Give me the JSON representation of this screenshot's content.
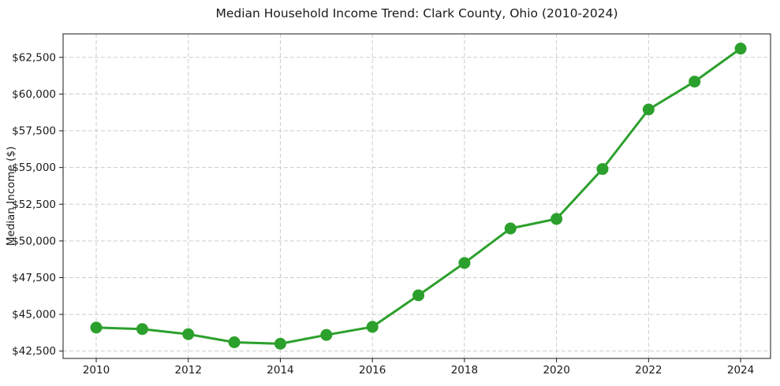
{
  "chart_data": {
    "type": "line",
    "title": "Median Household Income Trend: Clark County, Ohio (2010-2024)",
    "xlabel": "",
    "ylabel": "Median Income ($)",
    "x": [
      2010,
      2011,
      2012,
      2013,
      2014,
      2015,
      2016,
      2017,
      2018,
      2019,
      2020,
      2021,
      2022,
      2023,
      2024
    ],
    "series": [
      {
        "name": "Median Household Income",
        "values": [
          44100,
          44000,
          43650,
          43100,
          43000,
          43600,
          44150,
          46300,
          48500,
          50850,
          51500,
          54900,
          58950,
          60850,
          63100
        ],
        "color": "#2ca02c",
        "marker": "circle",
        "marker_radius": 7.5,
        "line_width": 3
      }
    ],
    "xlim": [
      2009.28,
      2024.65
    ],
    "ylim": [
      42000,
      64100
    ],
    "x_ticks": [
      2010,
      2012,
      2014,
      2016,
      2018,
      2020,
      2022,
      2024
    ],
    "x_tick_labels": [
      "2010",
      "2012",
      "2014",
      "2016",
      "2018",
      "2020",
      "2022",
      "2024"
    ],
    "y_ticks": [
      42500,
      45000,
      47500,
      50000,
      52500,
      55000,
      57500,
      60000,
      62500
    ],
    "y_tick_labels": [
      "$42,500",
      "$45,000",
      "$47,500",
      "$50,000",
      "$52,500",
      "$55,000",
      "$57,500",
      "$60,000",
      "$62,500"
    ],
    "grid": true,
    "grid_style": "dashed",
    "grid_color": "#cccccc",
    "axis_color": "#1a1a1a",
    "tick_label_color": "#1a1a1a",
    "background_color": "#ffffff",
    "legend": "none"
  }
}
